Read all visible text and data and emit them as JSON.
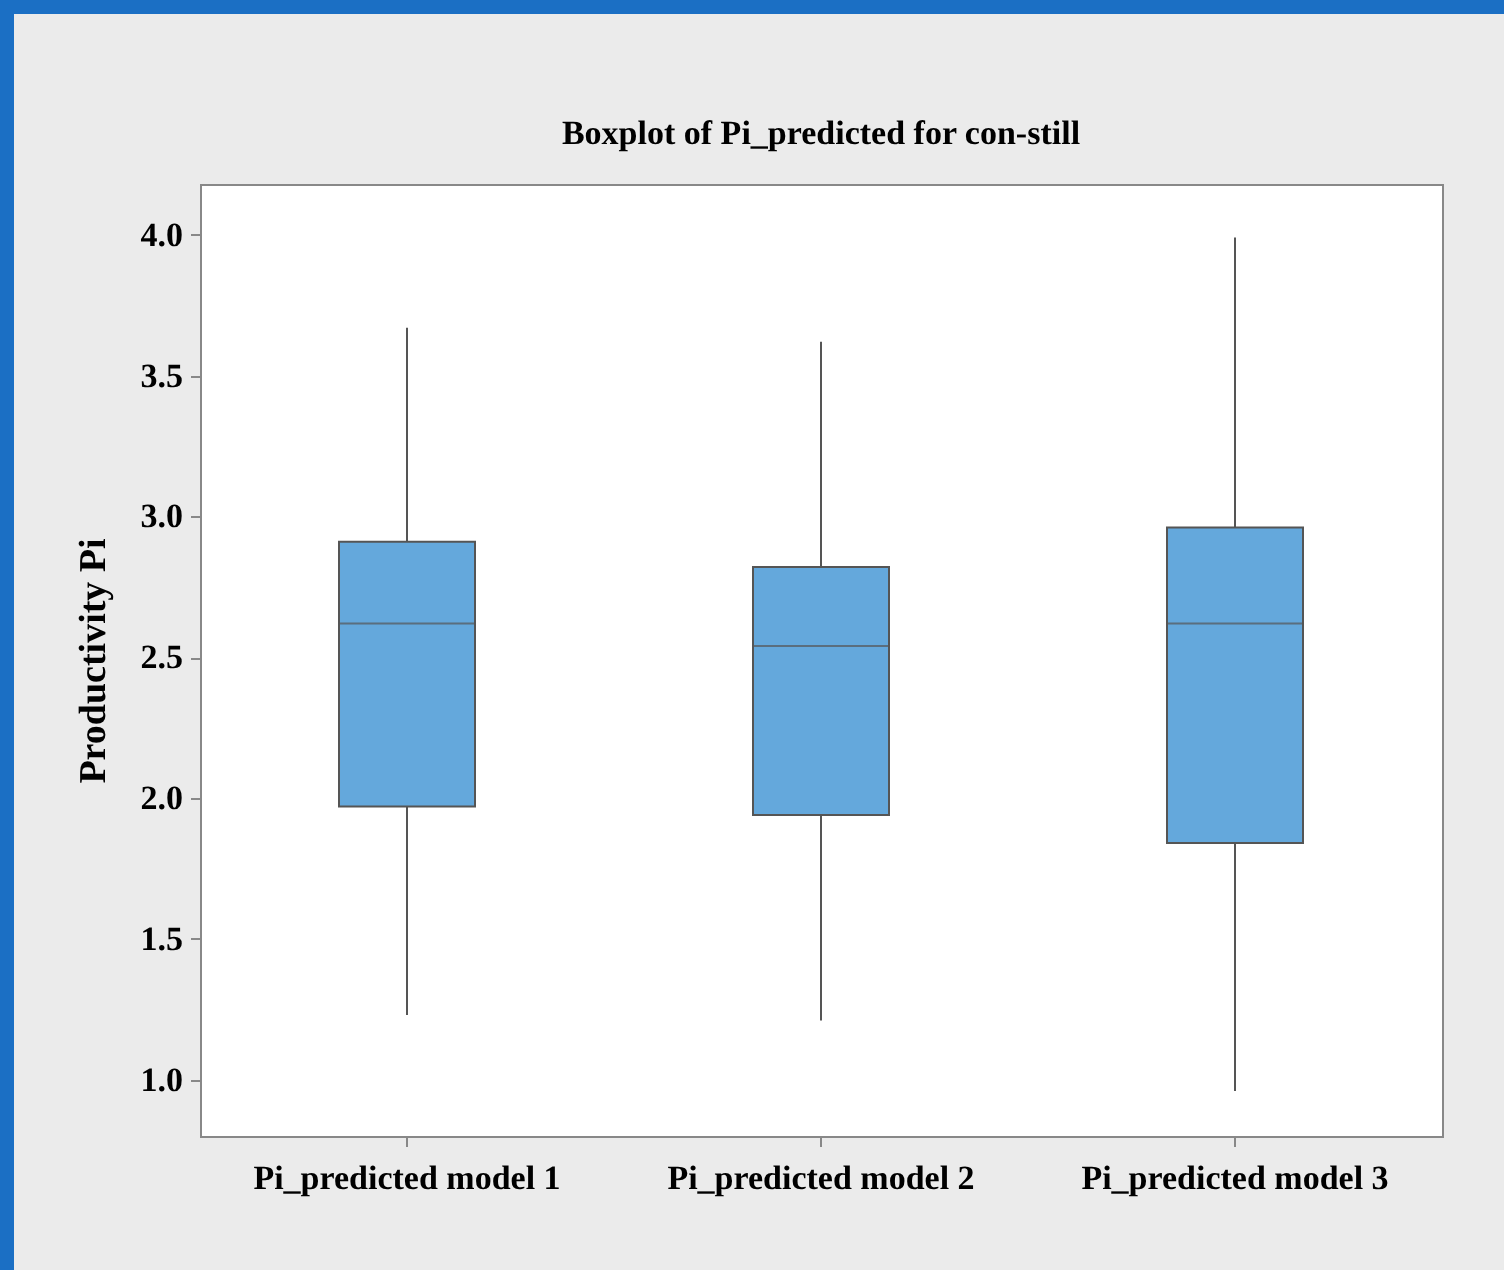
{
  "chart_data": {
    "type": "box",
    "title": "Boxplot of Pi_predicted for con-still",
    "ylabel": "Productivity Pi",
    "categories": [
      "Pi_predicted model 1",
      "Pi_predicted model 2",
      "Pi_predicted model 3"
    ],
    "series": [
      {
        "color": "#64a8dc",
        "boxes": [
          {
            "low": 1.23,
            "q1": 1.97,
            "median": 2.62,
            "q3": 2.91,
            "high": 3.67
          },
          {
            "low": 1.21,
            "q1": 1.94,
            "median": 2.54,
            "q3": 2.82,
            "high": 3.62
          },
          {
            "low": 0.96,
            "q1": 1.84,
            "median": 2.62,
            "q3": 2.96,
            "high": 3.99
          }
        ]
      }
    ],
    "ylim": [
      0.8,
      4.18
    ],
    "yticks": [
      {
        "value": 1,
        "label": "1.0"
      },
      {
        "value": 1.5,
        "label": "1.5"
      },
      {
        "value": 2,
        "label": "2.0"
      },
      {
        "value": 2.5,
        "label": "2.5"
      },
      {
        "value": 3,
        "label": "3.0"
      },
      {
        "value": 3.5,
        "label": "3.5"
      },
      {
        "value": 4,
        "label": "4.0"
      }
    ]
  }
}
